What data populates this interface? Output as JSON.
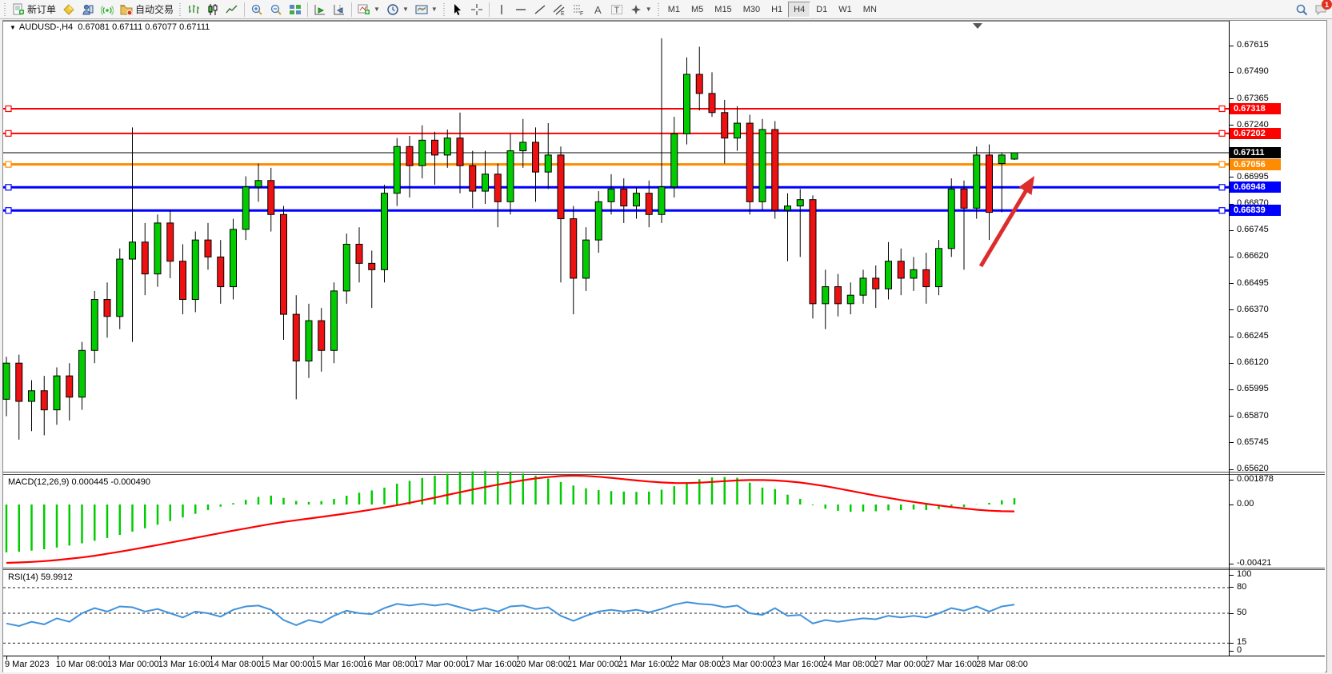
{
  "toolbar": {
    "new_order_label": "新订单",
    "autotrading_label": "自动交易",
    "periods": [
      "M1",
      "M5",
      "M15",
      "M30",
      "H1",
      "H4",
      "D1",
      "W1",
      "MN"
    ],
    "active_period": "H4",
    "badge_count": "1"
  },
  "chart": {
    "title_symbol": "AUDUSD-,H4",
    "title_ohlc": "0.67081 0.67111 0.67077 0.67111",
    "macd_label": "MACD(12,26,9) 0.000445 -0.000490",
    "rsi_label": "RSI(14) 59.9912"
  },
  "colors": {
    "up": "#00CC00",
    "down": "#EE1111",
    "wick": "#000000",
    "macd_hist": "#00CC00",
    "macd_signal": "#FF0000",
    "rsi_line": "#4092DC",
    "arrow": "#DD2C2C",
    "red_line": "#FF0000",
    "orange_line": "#FF8C00",
    "blue_line": "#0000FF",
    "price_line": "#000000"
  },
  "hlines": [
    {
      "label": "0.67318",
      "price": 0.67318,
      "color": "#FF0000",
      "width": 2,
      "marker": true
    },
    {
      "label": "0.67202",
      "price": 0.67202,
      "color": "#FF0000",
      "width": 2,
      "marker": true
    },
    {
      "label": "0.67111",
      "price": 0.67111,
      "color": "#000000",
      "width": 1,
      "marker": false
    },
    {
      "label": "0.67056",
      "price": 0.67056,
      "color": "#FF8C00",
      "width": 3,
      "marker": true
    },
    {
      "label": "0.66948",
      "price": 0.66948,
      "color": "#0000FF",
      "width": 3,
      "marker": true
    },
    {
      "label": "0.66839",
      "price": 0.66839,
      "color": "#0000FF",
      "width": 3,
      "marker": true
    }
  ],
  "axis": {
    "price_ticks": [
      "0.67615",
      "0.67490",
      "0.67365",
      "0.67240",
      "0.67115",
      "0.66995",
      "0.66870",
      "0.66745",
      "0.66620",
      "0.66495",
      "0.66370",
      "0.66245",
      "0.66120",
      "0.65995",
      "0.65870",
      "0.65745",
      "0.65620"
    ],
    "macd_ticks": [
      {
        "label": "0.001878",
        "value": 0.001878
      },
      {
        "label": "0.00",
        "value": 0
      },
      {
        "label": "-0.00421",
        "value": -0.00421
      }
    ],
    "rsi_ticks": [
      {
        "label": "100",
        "value": 100
      },
      {
        "label": "80",
        "value": 80
      },
      {
        "label": "50",
        "value": 50
      },
      {
        "label": "15",
        "value": 15
      },
      {
        "label": "0",
        "value": 0
      }
    ],
    "time_labels": [
      "9 Mar 2023",
      "10 Mar 08:00",
      "13 Mar 00:00",
      "13 Mar 16:00",
      "14 Mar 08:00",
      "15 Mar 00:00",
      "15 Mar 16:00",
      "16 Mar 08:00",
      "17 Mar 00:00",
      "17 Mar 16:00",
      "20 Mar 08:00",
      "21 Mar 00:00",
      "21 Mar 16:00",
      "22 Mar 08:00",
      "23 Mar 00:00",
      "23 Mar 16:00",
      "24 Mar 08:00",
      "27 Mar 00:00",
      "27 Mar 16:00",
      "28 Mar 08:00"
    ]
  },
  "chart_data": {
    "type": "candlestick",
    "symbol": "AUDUSD",
    "timeframe": "H4",
    "candles": [
      [
        0.6595,
        0.6615,
        0.6587,
        0.6612
      ],
      [
        0.6612,
        0.6616,
        0.6576,
        0.6594
      ],
      [
        0.6594,
        0.6604,
        0.658,
        0.6599
      ],
      [
        0.6599,
        0.6606,
        0.6578,
        0.659
      ],
      [
        0.659,
        0.661,
        0.6583,
        0.6606
      ],
      [
        0.6606,
        0.6612,
        0.6585,
        0.6596
      ],
      [
        0.6596,
        0.6622,
        0.659,
        0.6618
      ],
      [
        0.6618,
        0.6646,
        0.6612,
        0.6642
      ],
      [
        0.6642,
        0.665,
        0.6624,
        0.6634
      ],
      [
        0.6634,
        0.6666,
        0.6628,
        0.6661
      ],
      [
        0.6661,
        0.6723,
        0.6622,
        0.6669
      ],
      [
        0.6669,
        0.6678,
        0.6644,
        0.6654
      ],
      [
        0.6654,
        0.6682,
        0.6648,
        0.6678
      ],
      [
        0.6678,
        0.6684,
        0.6652,
        0.666
      ],
      [
        0.666,
        0.6668,
        0.6635,
        0.6642
      ],
      [
        0.6642,
        0.6674,
        0.6636,
        0.667
      ],
      [
        0.667,
        0.6678,
        0.6656,
        0.6662
      ],
      [
        0.6662,
        0.667,
        0.664,
        0.6648
      ],
      [
        0.6648,
        0.668,
        0.6642,
        0.6675
      ],
      [
        0.6675,
        0.67,
        0.667,
        0.6695
      ],
      [
        0.6695,
        0.6706,
        0.6688,
        0.6698
      ],
      [
        0.6698,
        0.6704,
        0.6674,
        0.6682
      ],
      [
        0.6682,
        0.6686,
        0.6623,
        0.6635
      ],
      [
        0.6635,
        0.6644,
        0.6595,
        0.6613
      ],
      [
        0.6613,
        0.664,
        0.6605,
        0.6632
      ],
      [
        0.6632,
        0.6638,
        0.6608,
        0.6618
      ],
      [
        0.6618,
        0.665,
        0.6612,
        0.6646
      ],
      [
        0.6646,
        0.6673,
        0.664,
        0.6668
      ],
      [
        0.6668,
        0.6676,
        0.665,
        0.6659
      ],
      [
        0.6659,
        0.6665,
        0.6638,
        0.6656
      ],
      [
        0.6656,
        0.6696,
        0.665,
        0.6692
      ],
      [
        0.6692,
        0.6718,
        0.6686,
        0.6714
      ],
      [
        0.6714,
        0.6719,
        0.669,
        0.6705
      ],
      [
        0.6705,
        0.6724,
        0.6699,
        0.6717
      ],
      [
        0.6717,
        0.6721,
        0.6696,
        0.671
      ],
      [
        0.671,
        0.6722,
        0.6704,
        0.6718
      ],
      [
        0.6718,
        0.673,
        0.6692,
        0.6705
      ],
      [
        0.6705,
        0.6712,
        0.6685,
        0.6693
      ],
      [
        0.6693,
        0.6712,
        0.6687,
        0.6701
      ],
      [
        0.6701,
        0.6706,
        0.6676,
        0.6688
      ],
      [
        0.6688,
        0.672,
        0.6682,
        0.6712
      ],
      [
        0.6712,
        0.6727,
        0.6704,
        0.6716
      ],
      [
        0.6716,
        0.6723,
        0.6688,
        0.6702
      ],
      [
        0.6702,
        0.6725,
        0.6694,
        0.671
      ],
      [
        0.671,
        0.6714,
        0.665,
        0.668
      ],
      [
        0.668,
        0.6686,
        0.6635,
        0.6652
      ],
      [
        0.6652,
        0.6676,
        0.6646,
        0.667
      ],
      [
        0.667,
        0.6693,
        0.6664,
        0.6688
      ],
      [
        0.6688,
        0.6701,
        0.6682,
        0.6694
      ],
      [
        0.6694,
        0.6699,
        0.6678,
        0.6686
      ],
      [
        0.6686,
        0.6695,
        0.668,
        0.6692
      ],
      [
        0.6692,
        0.6698,
        0.6676,
        0.6682
      ],
      [
        0.6682,
        0.6765,
        0.6678,
        0.6695
      ],
      [
        0.6695,
        0.6728,
        0.669,
        0.672
      ],
      [
        0.672,
        0.6756,
        0.6715,
        0.6748
      ],
      [
        0.6748,
        0.6761,
        0.6731,
        0.6739
      ],
      [
        0.6739,
        0.6749,
        0.6728,
        0.673
      ],
      [
        0.673,
        0.6736,
        0.6706,
        0.6718
      ],
      [
        0.6718,
        0.6733,
        0.6712,
        0.6725
      ],
      [
        0.6725,
        0.6729,
        0.6682,
        0.6688
      ],
      [
        0.6688,
        0.6727,
        0.6684,
        0.6722
      ],
      [
        0.6722,
        0.6726,
        0.668,
        0.6684
      ],
      [
        0.6684,
        0.6692,
        0.666,
        0.6686
      ],
      [
        0.6686,
        0.6694,
        0.6662,
        0.6689
      ],
      [
        0.6689,
        0.6691,
        0.6633,
        0.664
      ],
      [
        0.664,
        0.6656,
        0.6628,
        0.6648
      ],
      [
        0.6648,
        0.6654,
        0.6634,
        0.664
      ],
      [
        0.664,
        0.665,
        0.6635,
        0.6644
      ],
      [
        0.6644,
        0.6656,
        0.664,
        0.6652
      ],
      [
        0.6652,
        0.6658,
        0.6638,
        0.6647
      ],
      [
        0.6647,
        0.6669,
        0.6642,
        0.666
      ],
      [
        0.666,
        0.6666,
        0.6644,
        0.6652
      ],
      [
        0.6652,
        0.6662,
        0.6646,
        0.6656
      ],
      [
        0.6656,
        0.6664,
        0.664,
        0.6648
      ],
      [
        0.6648,
        0.667,
        0.6644,
        0.6666
      ],
      [
        0.6666,
        0.6699,
        0.6662,
        0.6694
      ],
      [
        0.6694,
        0.6698,
        0.6656,
        0.6685
      ],
      [
        0.6685,
        0.6714,
        0.668,
        0.671
      ],
      [
        0.671,
        0.6715,
        0.667,
        0.6683
      ],
      [
        0.6706,
        0.6711,
        0.6683,
        0.671
      ],
      [
        0.67081,
        0.67111,
        0.67077,
        0.67111
      ]
    ],
    "macd": {
      "histogram_x1e3": [
        -3.4,
        -3.35,
        -3.28,
        -3.18,
        -3.06,
        -2.92,
        -2.76,
        -2.58,
        -2.38,
        -2.16,
        -1.93,
        -1.69,
        -1.44,
        -1.18,
        -0.92,
        -0.66,
        -0.4,
        -0.15,
        0.1,
        0.33,
        0.54,
        0.63,
        0.47,
        0.25,
        0.18,
        0.24,
        0.4,
        0.62,
        0.84,
        1.0,
        1.2,
        1.48,
        1.68,
        1.88,
        2.05,
        2.18,
        2.28,
        2.35,
        2.38,
        2.36,
        2.3,
        2.2,
        2.05,
        1.85,
        1.6,
        1.35,
        1.15,
        1.02,
        0.95,
        0.92,
        0.9,
        0.92,
        1.05,
        1.3,
        1.58,
        1.8,
        1.92,
        1.95,
        1.9,
        1.55,
        1.2,
        1.1,
        0.7,
        0.4,
        -0.05,
        -0.3,
        -0.45,
        -0.52,
        -0.5,
        -0.48,
        -0.42,
        -0.4,
        -0.36,
        -0.4,
        -0.32,
        -0.12,
        -0.18,
        0.02,
        0.12,
        0.3,
        0.445
      ],
      "signal_x1e3": [
        -4.15,
        -4.12,
        -4.08,
        -4.02,
        -3.95,
        -3.86,
        -3.76,
        -3.64,
        -3.5,
        -3.36,
        -3.2,
        -3.04,
        -2.88,
        -2.71,
        -2.54,
        -2.37,
        -2.2,
        -2.03,
        -1.86,
        -1.7,
        -1.54,
        -1.38,
        -1.24,
        -1.12,
        -1.0,
        -0.88,
        -0.76,
        -0.63,
        -0.5,
        -0.36,
        -0.21,
        -0.05,
        0.12,
        0.3,
        0.49,
        0.68,
        0.87,
        1.06,
        1.24,
        1.41,
        1.57,
        1.72,
        1.85,
        1.95,
        2.02,
        2.05,
        2.03,
        1.97,
        1.89,
        1.8,
        1.71,
        1.63,
        1.57,
        1.53,
        1.52,
        1.55,
        1.6,
        1.66,
        1.71,
        1.74,
        1.74,
        1.71,
        1.65,
        1.56,
        1.44,
        1.3,
        1.14,
        0.97,
        0.8,
        0.63,
        0.47,
        0.32,
        0.18,
        0.05,
        -0.07,
        -0.18,
        -0.28,
        -0.37,
        -0.44,
        -0.48,
        -0.49
      ]
    },
    "rsi": {
      "levels": [
        80,
        50,
        15
      ],
      "values": [
        38,
        35,
        40,
        37,
        44,
        40,
        50,
        56,
        52,
        58,
        57,
        52,
        55,
        50,
        45,
        52,
        50,
        46,
        54,
        58,
        59,
        54,
        42,
        36,
        42,
        39,
        47,
        53,
        50,
        49,
        56,
        61,
        59,
        61,
        59,
        61,
        57,
        53,
        56,
        52,
        58,
        59,
        55,
        57,
        47,
        41,
        47,
        52,
        54,
        52,
        54,
        51,
        55,
        60,
        63,
        61,
        60,
        57,
        59,
        50,
        48,
        56,
        47,
        48,
        38,
        42,
        40,
        42,
        44,
        43,
        47,
        45,
        47,
        45,
        50,
        56,
        53,
        58,
        52,
        58,
        60
      ]
    }
  }
}
